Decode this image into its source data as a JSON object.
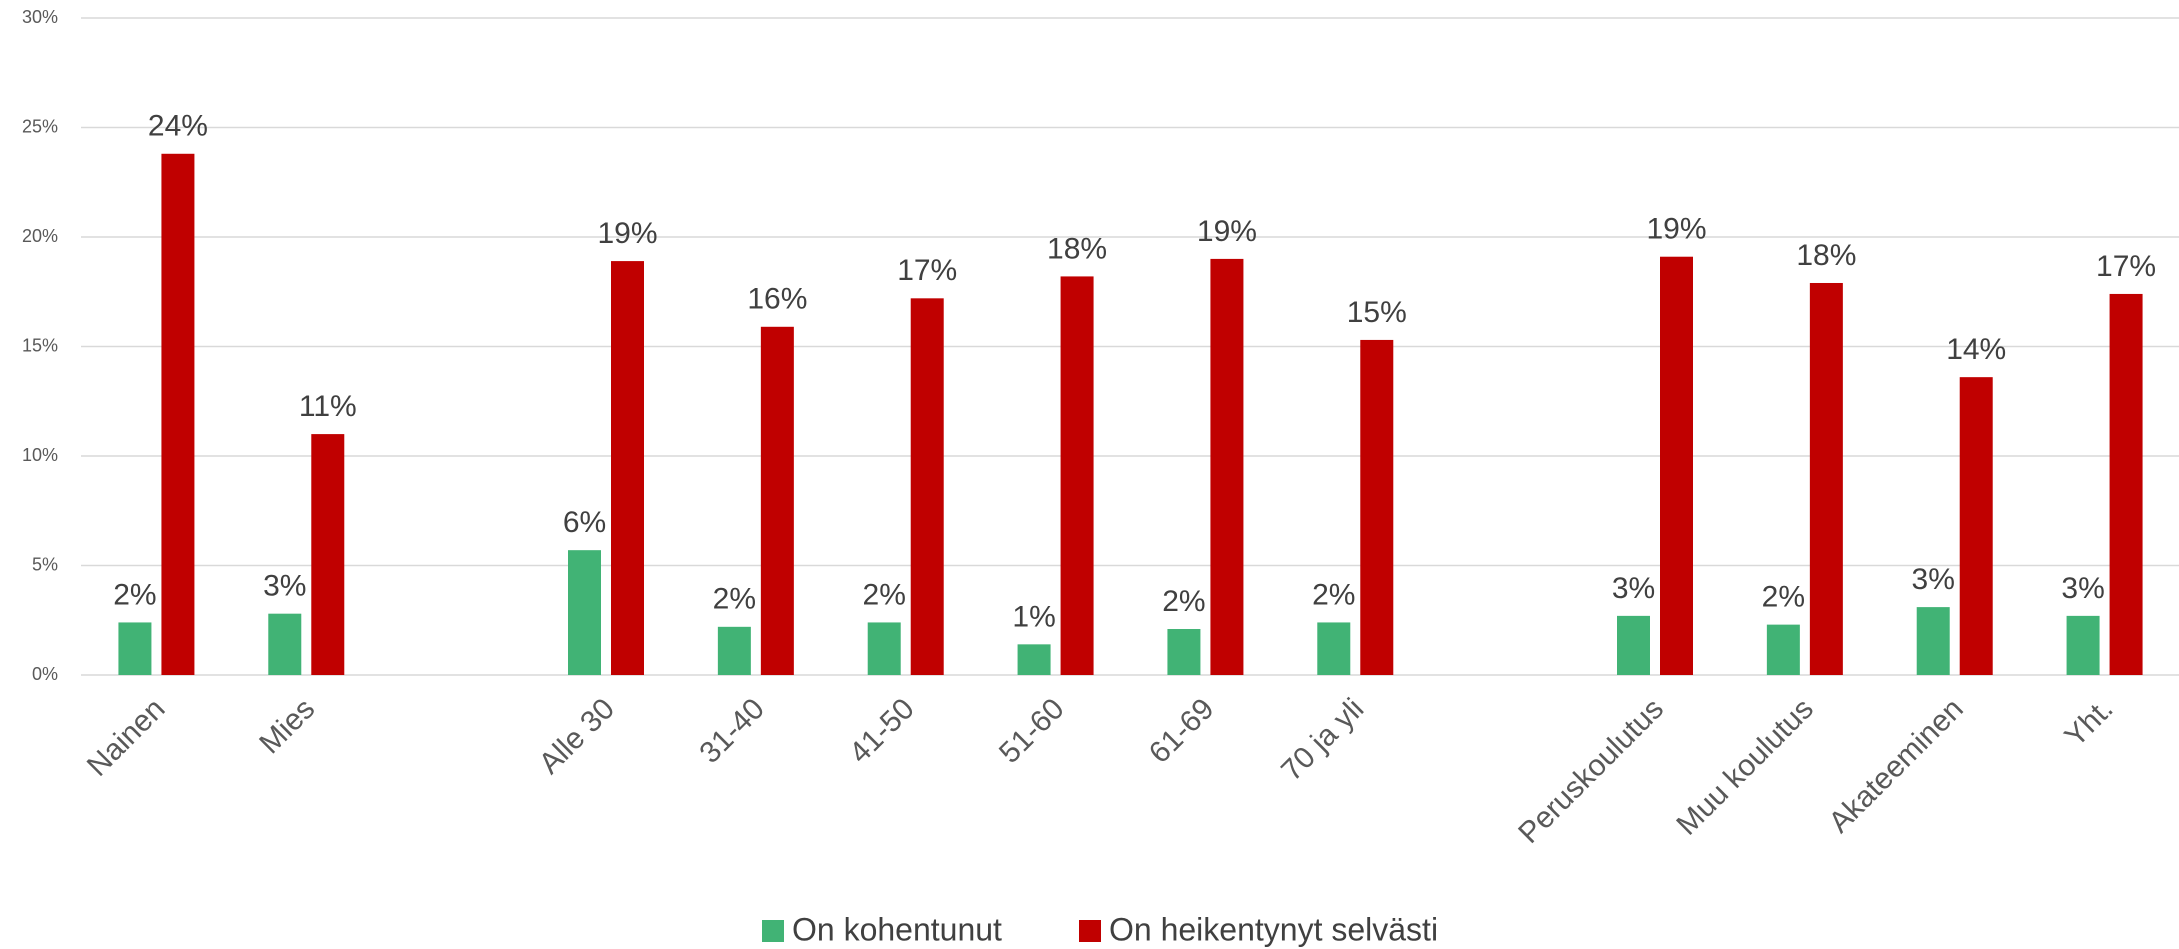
{
  "chart_data": {
    "type": "bar",
    "categories": [
      "Nainen",
      "Mies",
      null,
      "Alle 30",
      "31-40",
      "41-50",
      "51-60",
      "61-69",
      "70 ja yli",
      null,
      "Peruskoulutus",
      "Muu koulutus",
      "Akateeminen",
      "Yht."
    ],
    "series": [
      {
        "name": "On kohentunut",
        "color": "#41b375",
        "values": [
          2.4,
          2.8,
          null,
          5.7,
          2.2,
          2.4,
          1.4,
          2.1,
          2.4,
          null,
          2.7,
          2.3,
          3.1,
          2.7
        ],
        "value_labels": [
          "2%",
          "3%",
          null,
          "6%",
          "2%",
          "2%",
          "1%",
          "2%",
          "2%",
          null,
          "3%",
          "2%",
          "3%",
          "3%"
        ]
      },
      {
        "name": "On heikentynyt selvästi",
        "color": "#c00000",
        "values": [
          23.8,
          11.0,
          null,
          18.9,
          15.9,
          17.2,
          18.2,
          19.0,
          15.3,
          null,
          19.1,
          17.9,
          13.6,
          17.4
        ],
        "value_labels": [
          "24%",
          "11%",
          null,
          "19%",
          "16%",
          "17%",
          "18%",
          "19%",
          "15%",
          null,
          "19%",
          "18%",
          "14%",
          "17%"
        ]
      }
    ],
    "ylim": [
      0,
      30
    ],
    "yticks": [
      {
        "value": 0,
        "label": "0%"
      },
      {
        "value": 5,
        "label": "5%"
      },
      {
        "value": 10,
        "label": "10%"
      },
      {
        "value": 15,
        "label": "15%"
      },
      {
        "value": 20,
        "label": "20%"
      },
      {
        "value": 25,
        "label": "25%"
      },
      {
        "value": 30,
        "label": "30%"
      }
    ],
    "grid": true,
    "legend": "bottom"
  }
}
